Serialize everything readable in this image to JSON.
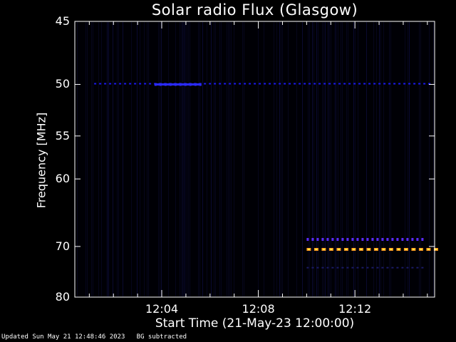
{
  "chart_data": {
    "type": "heatmap",
    "title": "Solar radio Flux (Glasgow)",
    "xlabel": "Start Time (21-May-23 12:00:00)",
    "ylabel": "Frequency [MHz]",
    "y_ticks": [
      45,
      50,
      55,
      60,
      70,
      80
    ],
    "x_ticks": [
      {
        "label": "12:04",
        "minutes": 4
      },
      {
        "label": "12:08",
        "minutes": 8
      },
      {
        "label": "12:12",
        "minutes": 12
      }
    ],
    "x_range_minutes": [
      0.4,
      15.3
    ],
    "background_colormap": "dark-blue",
    "features": [
      {
        "name": "band ~50 MHz",
        "freq": 50.0,
        "t_start": 1.2,
        "t_end": 15.2,
        "intensity": "low",
        "color": "#1a1aee"
      },
      {
        "name": "strong segment ~50 MHz",
        "freq": 50.0,
        "t_start": 3.7,
        "t_end": 5.6,
        "intensity": "medium",
        "color": "#2a2aff"
      },
      {
        "name": "band ~68.8 MHz",
        "freq": 68.8,
        "t_start": 10.0,
        "t_end": 14.8,
        "intensity": "medium",
        "color": "#5a2aff"
      },
      {
        "name": "bright band ~70.5 MHz",
        "freq": 70.5,
        "t_start": 10.0,
        "t_end": 15.3,
        "intensity": "high",
        "color": "#ff9a20"
      },
      {
        "name": "band ~74 MHz",
        "freq": 74.0,
        "t_start": 10.0,
        "t_end": 14.8,
        "intensity": "low",
        "color": "#1a1a66"
      }
    ],
    "grid": false
  },
  "footer": {
    "updated": "Updated Sun May 21 12:48:46 2023",
    "note": "BG subtracted"
  }
}
